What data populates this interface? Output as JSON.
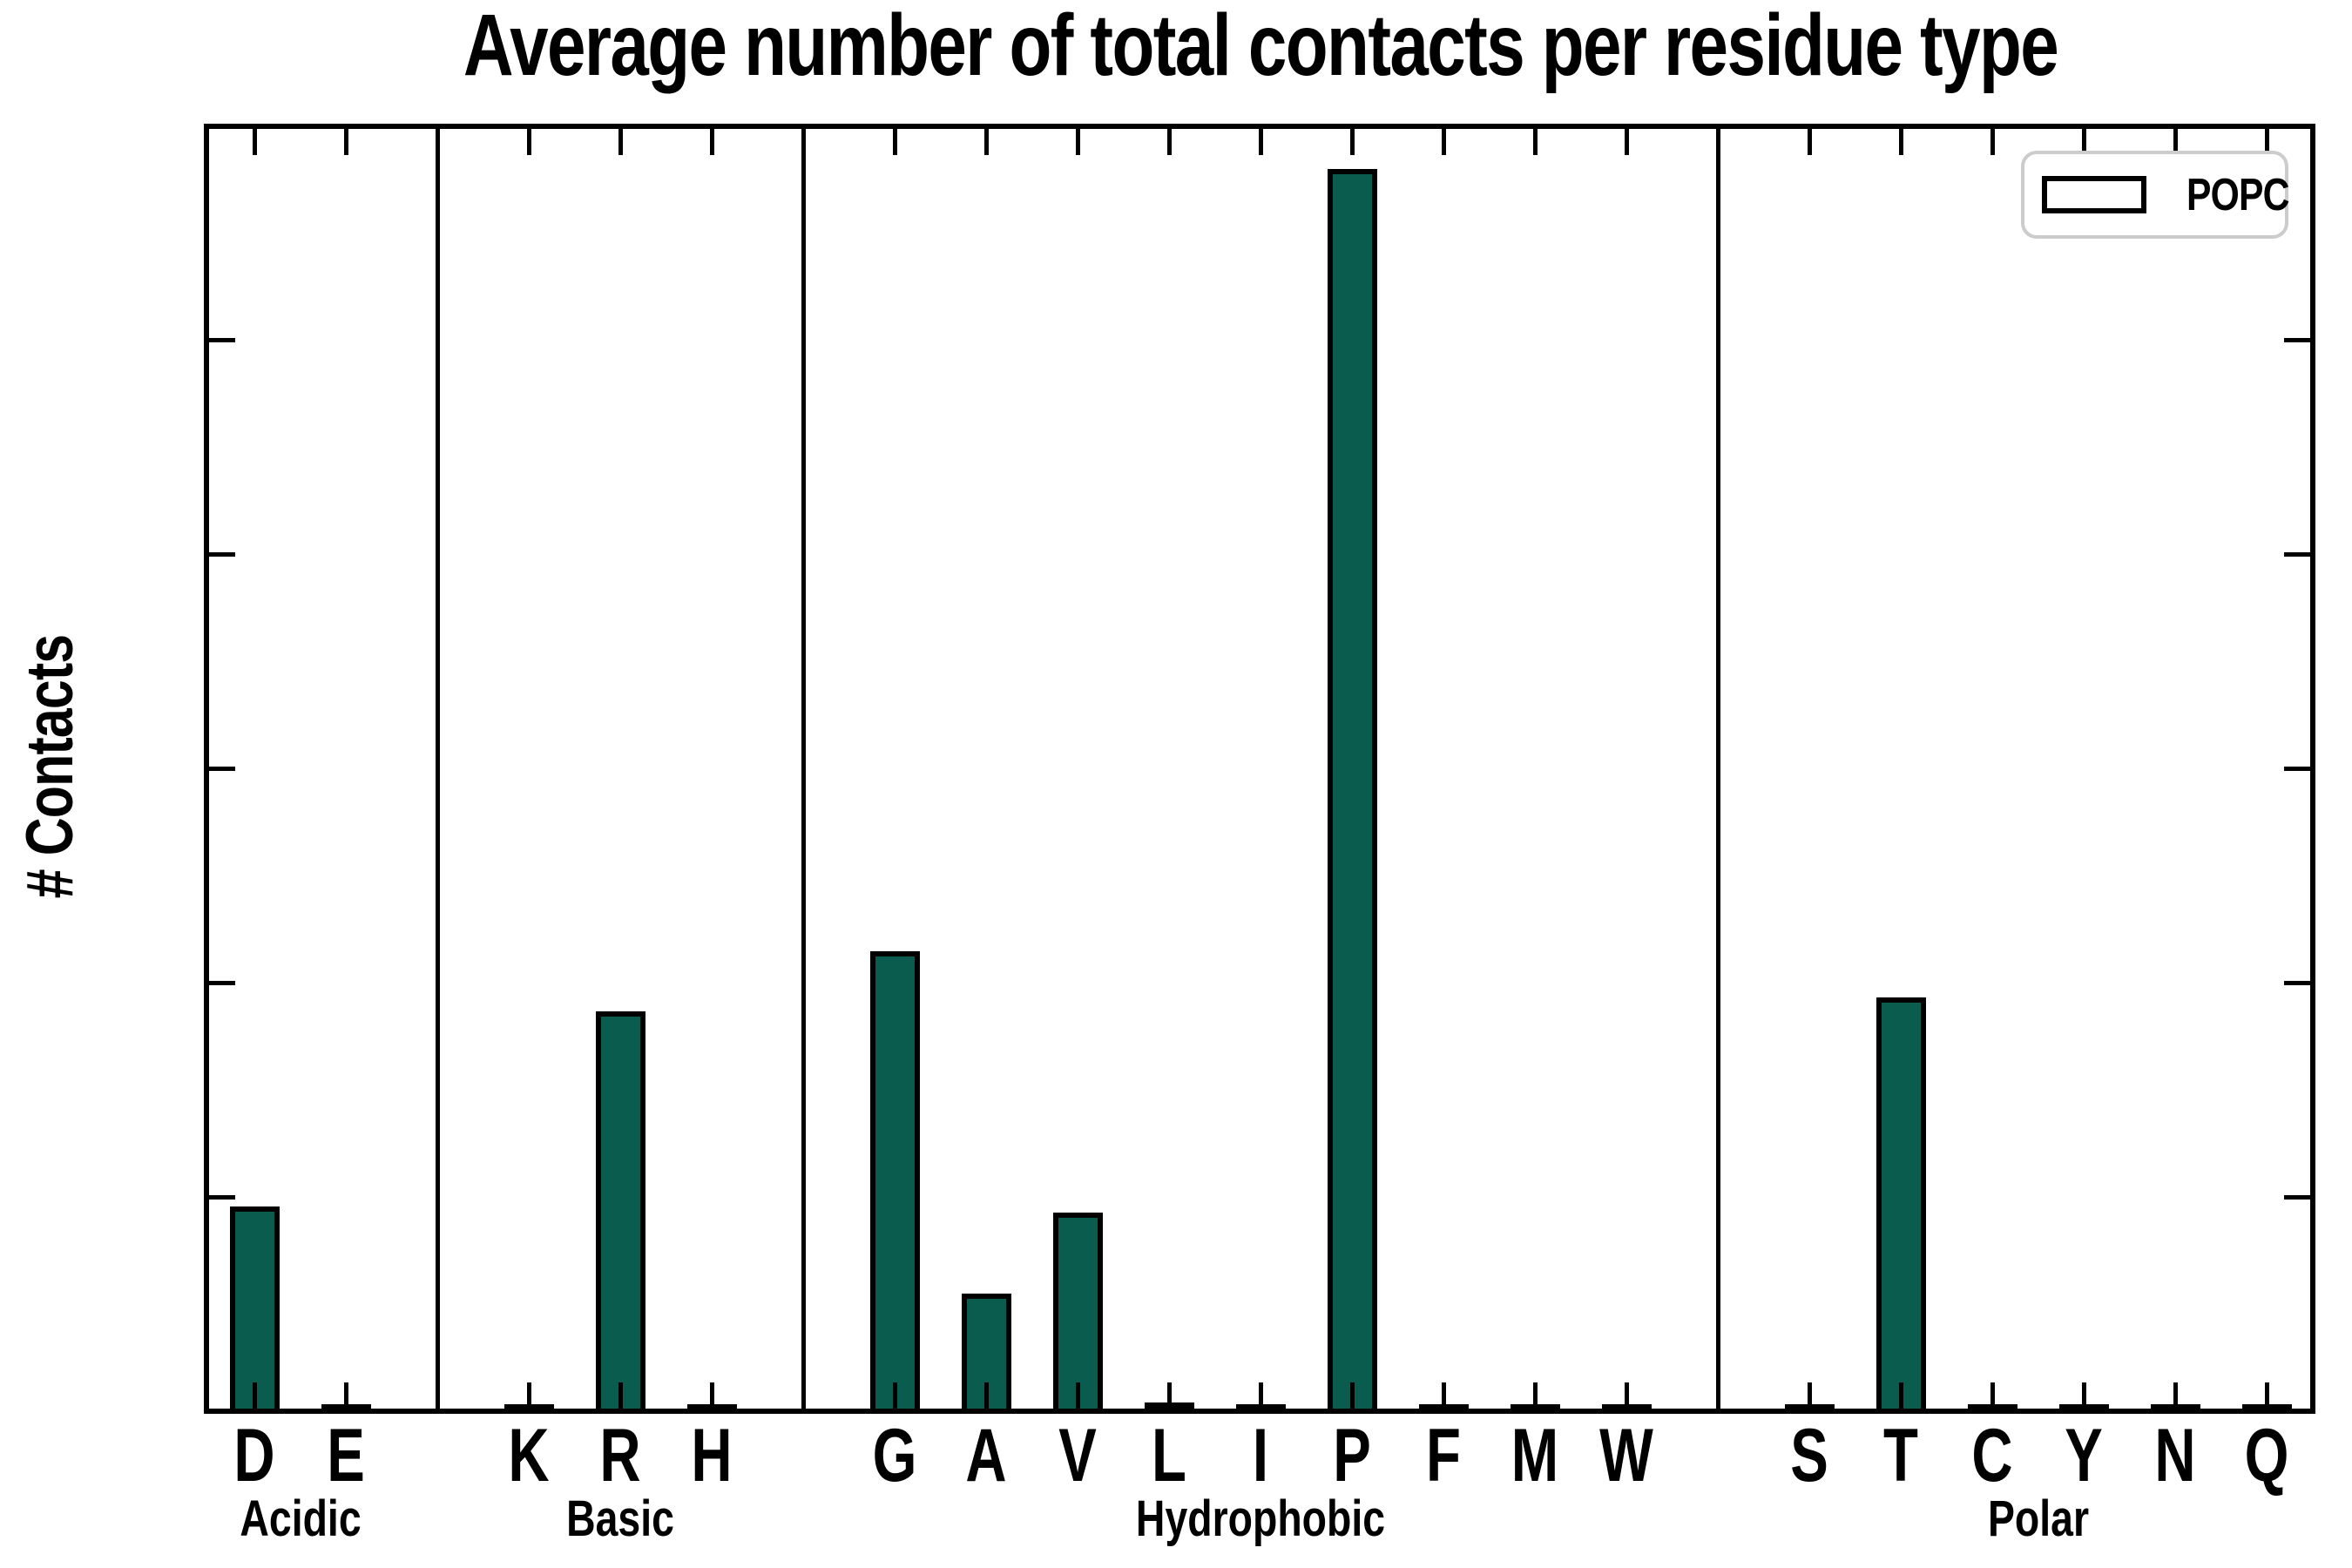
{
  "chart_data": {
    "type": "bar",
    "title": "Average number of total contacts per residue type",
    "ylabel": "# Contacts",
    "ylim": [
      0,
      12
    ],
    "yticks": [
      0,
      2,
      4,
      6,
      8,
      10,
      12
    ],
    "grid": false,
    "legend": {
      "label": "POPC",
      "position": "upper right"
    },
    "bar_color": "#0a5c4f",
    "bar_edge_color": "#000000",
    "legend_border_color": "#cccccc",
    "groups": [
      {
        "label": "Acidic",
        "categories": [
          "D",
          "E"
        ],
        "values": [
          1.89,
          0.03
        ]
      },
      {
        "label": "Basic",
        "categories": [
          "K",
          "R",
          "H"
        ],
        "values": [
          0.03,
          3.71,
          0.03
        ]
      },
      {
        "label": "Hydrophobic",
        "categories": [
          "G",
          "A",
          "V",
          "L",
          "I",
          "P",
          "F",
          "M",
          "W"
        ],
        "values": [
          4.27,
          1.07,
          1.83,
          0.05,
          0.03,
          11.58,
          0.03,
          0.03,
          0.03
        ]
      },
      {
        "label": "Polar",
        "categories": [
          "S",
          "T",
          "C",
          "Y",
          "N",
          "Q"
        ],
        "values": [
          0.03,
          3.84,
          0.03,
          0.03,
          0.03,
          0.03
        ]
      }
    ],
    "series": [
      {
        "name": "POPC",
        "values": [
          1.89,
          0.03,
          0.03,
          3.71,
          0.03,
          4.27,
          1.07,
          1.83,
          0.05,
          0.03,
          11.58,
          0.03,
          0.03,
          0.03,
          0.03,
          3.84,
          0.03,
          0.03,
          0.03,
          0.03
        ]
      }
    ]
  }
}
